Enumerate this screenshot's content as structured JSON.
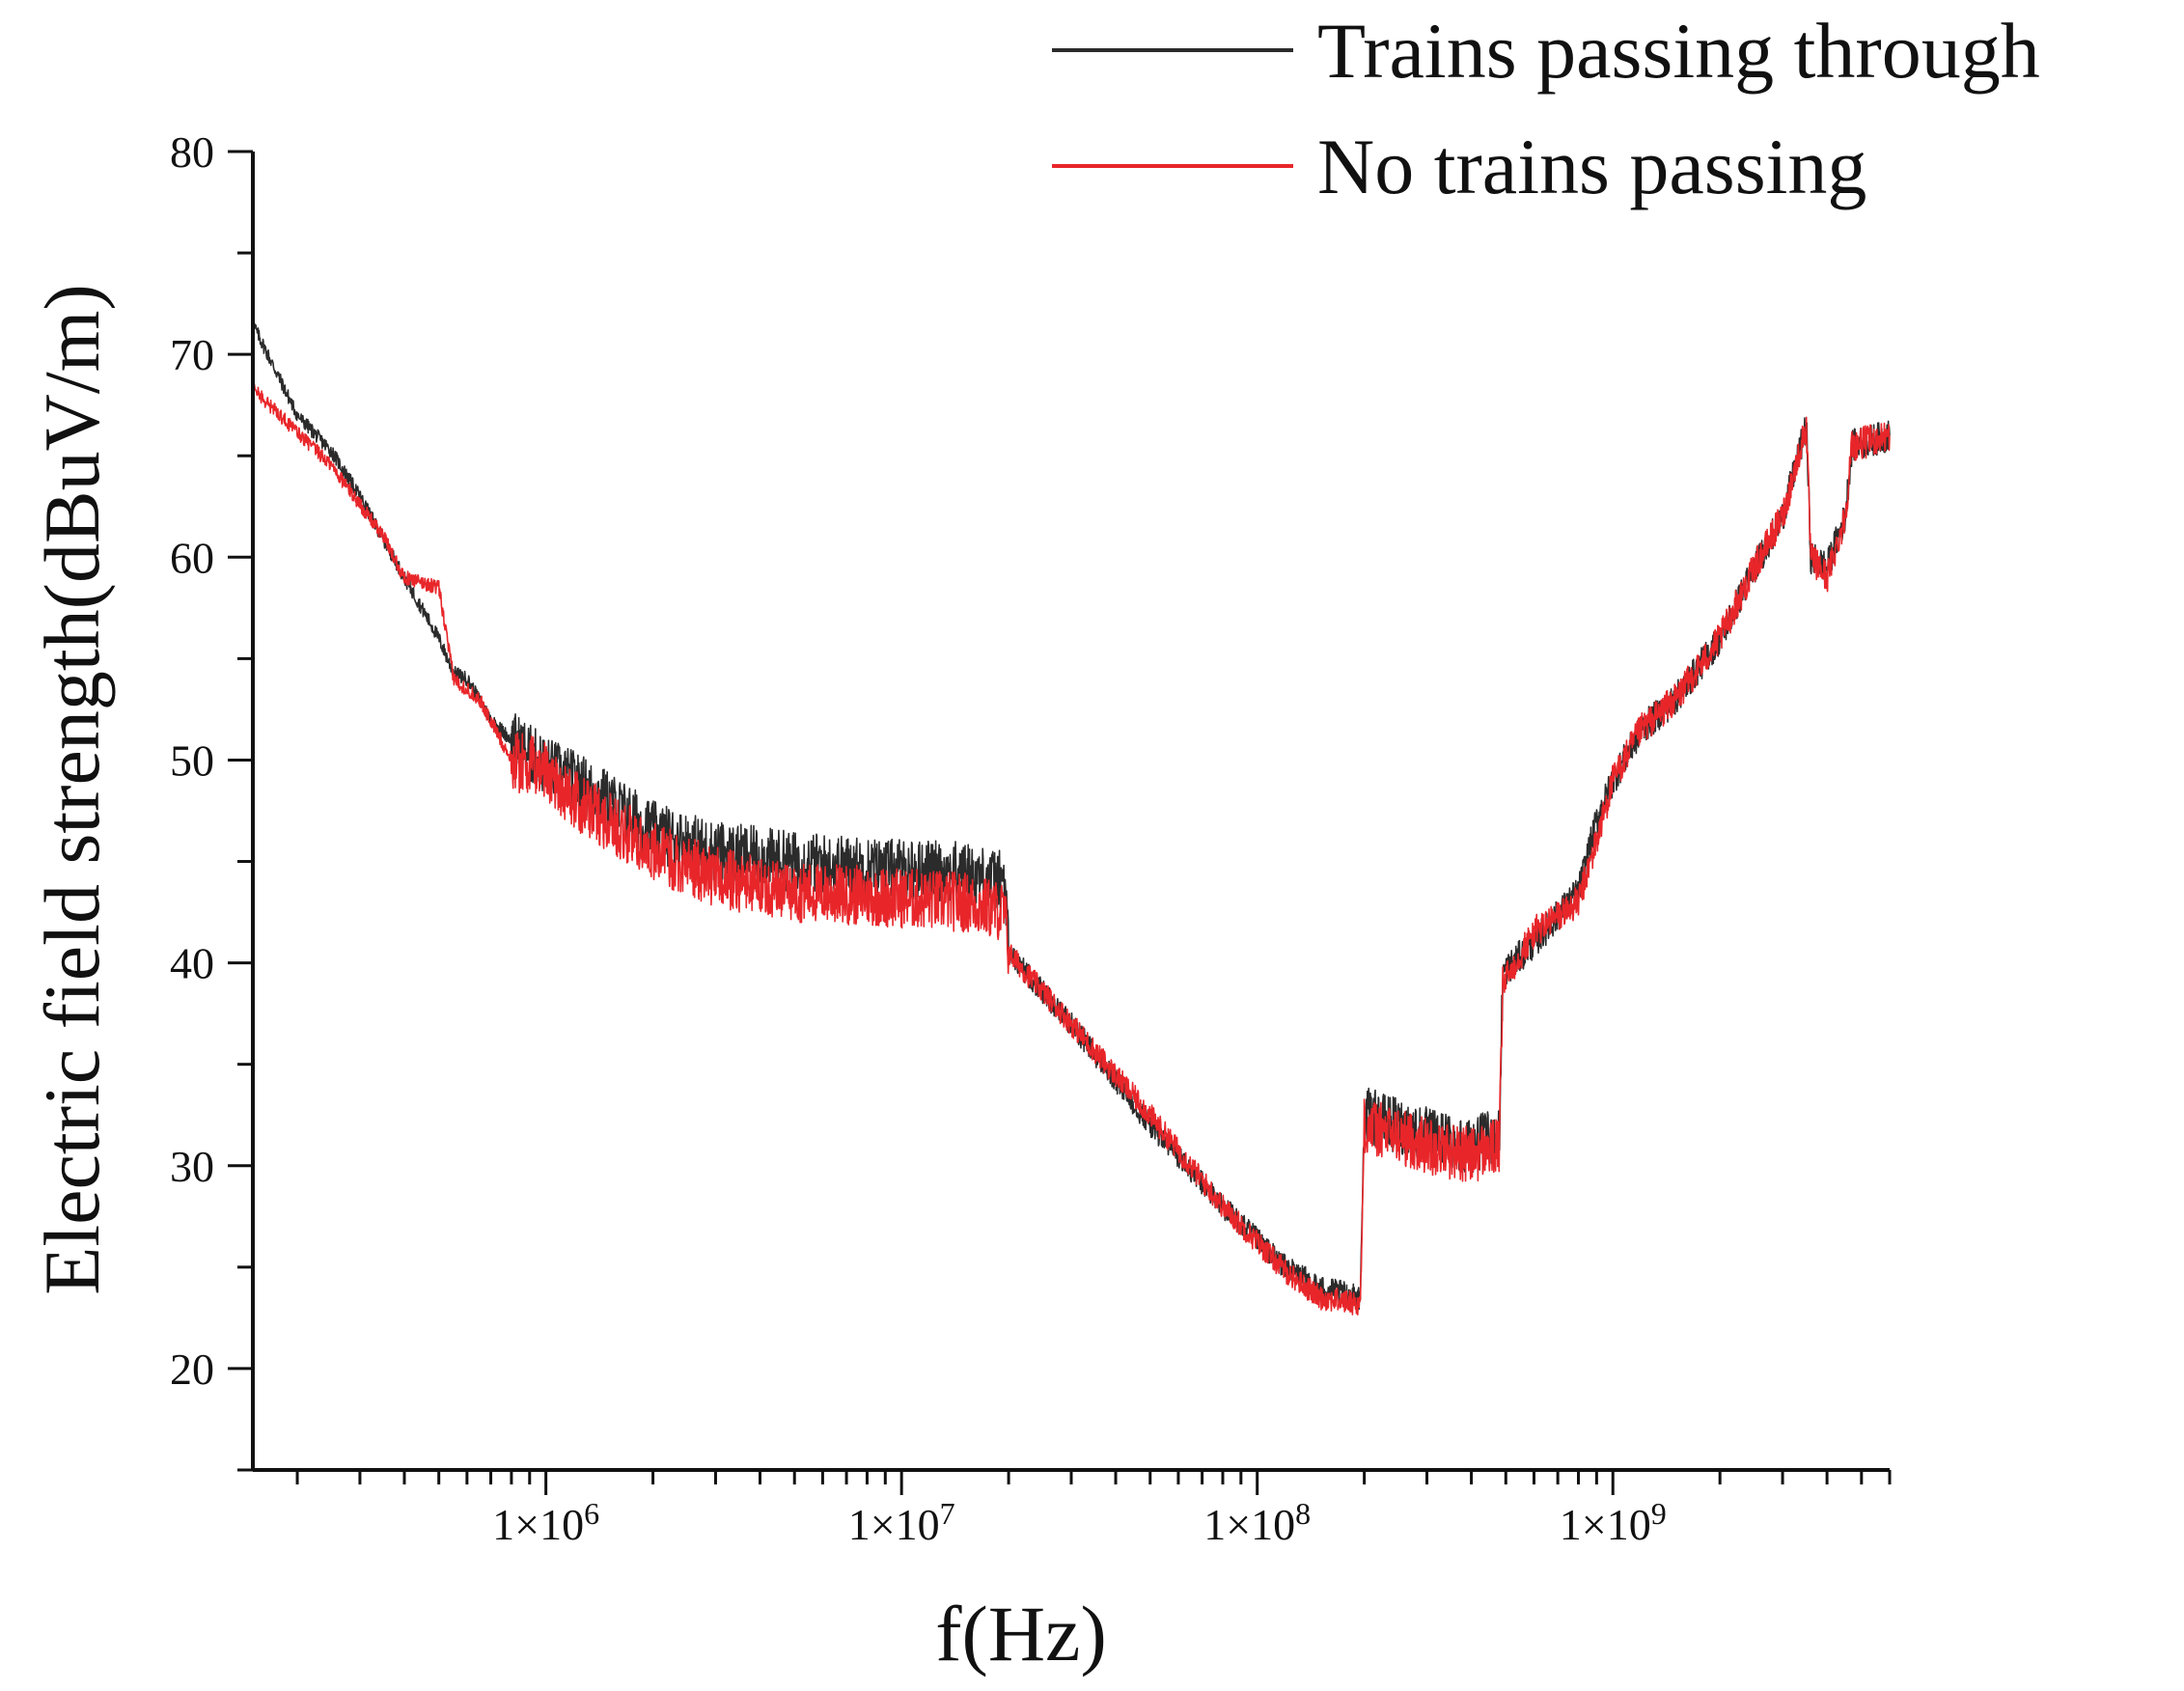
{
  "chart_data": {
    "type": "line",
    "title": "",
    "xlabel": "f(Hz)",
    "ylabel": "Electric field strength(dBuV/m)",
    "xscale": "log",
    "xlim": [
      150000,
      6000000000
    ],
    "ylim": [
      15,
      80
    ],
    "y_ticks": [
      20,
      30,
      40,
      50,
      60,
      70,
      80
    ],
    "x_ticks": [
      {
        "value": 1000000,
        "label": "1×10",
        "exp": "6"
      },
      {
        "value": 10000000,
        "label": "1×10",
        "exp": "7"
      },
      {
        "value": 100000000,
        "label": "1×10",
        "exp": "8"
      },
      {
        "value": 1000000000,
        "label": "1×10",
        "exp": "9"
      }
    ],
    "grid": false,
    "legend_position": "top-right",
    "series": [
      {
        "name": "Trains passing through",
        "color": "#2b2b2b",
        "points": [
          [
            150000,
            71.5
          ],
          [
            200000,
            67
          ],
          [
            250000,
            65.2
          ],
          [
            300000,
            63
          ],
          [
            400000,
            59
          ],
          [
            500000,
            56
          ],
          [
            550000,
            54.3
          ],
          [
            600000,
            54
          ],
          [
            700000,
            52
          ],
          [
            800000,
            51
          ],
          [
            1000000,
            49.7
          ],
          [
            1200000,
            49
          ],
          [
            1500000,
            48
          ],
          [
            2000000,
            46.5
          ],
          [
            3000000,
            45.5
          ],
          [
            5000000,
            45
          ],
          [
            10000000,
            44.6
          ],
          [
            15000000,
            44.5
          ],
          [
            19500000,
            44
          ],
          [
            20000000,
            40.5
          ],
          [
            30000000,
            37
          ],
          [
            50000000,
            32
          ],
          [
            80000000,
            28
          ],
          [
            120000000,
            25
          ],
          [
            150000000,
            24
          ],
          [
            195000000,
            23.5
          ],
          [
            200000000,
            32.5
          ],
          [
            300000000,
            31.5
          ],
          [
            400000000,
            31
          ],
          [
            480000000,
            31.5
          ],
          [
            490000000,
            39.5
          ],
          [
            600000000,
            41
          ],
          [
            800000000,
            43.5
          ],
          [
            900000000,
            47
          ],
          [
            1000000000,
            49
          ],
          [
            1200000000,
            51.5
          ],
          [
            1500000000,
            53
          ],
          [
            2000000000,
            56
          ],
          [
            2500000000,
            59.5
          ],
          [
            3000000000,
            62
          ],
          [
            3500000000,
            66.5
          ],
          [
            3600000000,
            60
          ],
          [
            4000000000,
            59.5
          ],
          [
            4500000000,
            62
          ],
          [
            4700000000,
            65.5
          ],
          [
            6000000000,
            66
          ]
        ]
      },
      {
        "name": "No trains passing",
        "color": "#e8262a",
        "points": [
          [
            150000,
            68.3
          ],
          [
            250000,
            64.5
          ],
          [
            350000,
            61
          ],
          [
            400000,
            59
          ],
          [
            500000,
            58.5
          ],
          [
            550000,
            54
          ],
          [
            650000,
            53
          ],
          [
            800000,
            50
          ],
          [
            1000000,
            49.5
          ],
          [
            1200000,
            48
          ],
          [
            1500000,
            47
          ],
          [
            2000000,
            45.5
          ],
          [
            3000000,
            44.2
          ],
          [
            5000000,
            43.5
          ],
          [
            10000000,
            43.2
          ],
          [
            15000000,
            43
          ],
          [
            19500000,
            42.5
          ],
          [
            20000000,
            40.5
          ],
          [
            30000000,
            37
          ],
          [
            50000000,
            32.5
          ],
          [
            80000000,
            28
          ],
          [
            120000000,
            24.8
          ],
          [
            150000000,
            23.5
          ],
          [
            195000000,
            23.2
          ],
          [
            200000000,
            32
          ],
          [
            300000000,
            31
          ],
          [
            400000000,
            30.5
          ],
          [
            480000000,
            31
          ],
          [
            490000000,
            39
          ],
          [
            600000000,
            41.5
          ],
          [
            800000000,
            43
          ],
          [
            900000000,
            46
          ],
          [
            1000000000,
            49
          ],
          [
            1200000000,
            51.5
          ],
          [
            1500000000,
            53
          ],
          [
            2000000000,
            56
          ],
          [
            2500000000,
            59.5
          ],
          [
            3000000000,
            62
          ],
          [
            3500000000,
            66.5
          ],
          [
            3600000000,
            60
          ],
          [
            4000000000,
            59
          ],
          [
            4500000000,
            62
          ],
          [
            4700000000,
            65.5
          ],
          [
            6000000000,
            66
          ]
        ]
      }
    ]
  }
}
